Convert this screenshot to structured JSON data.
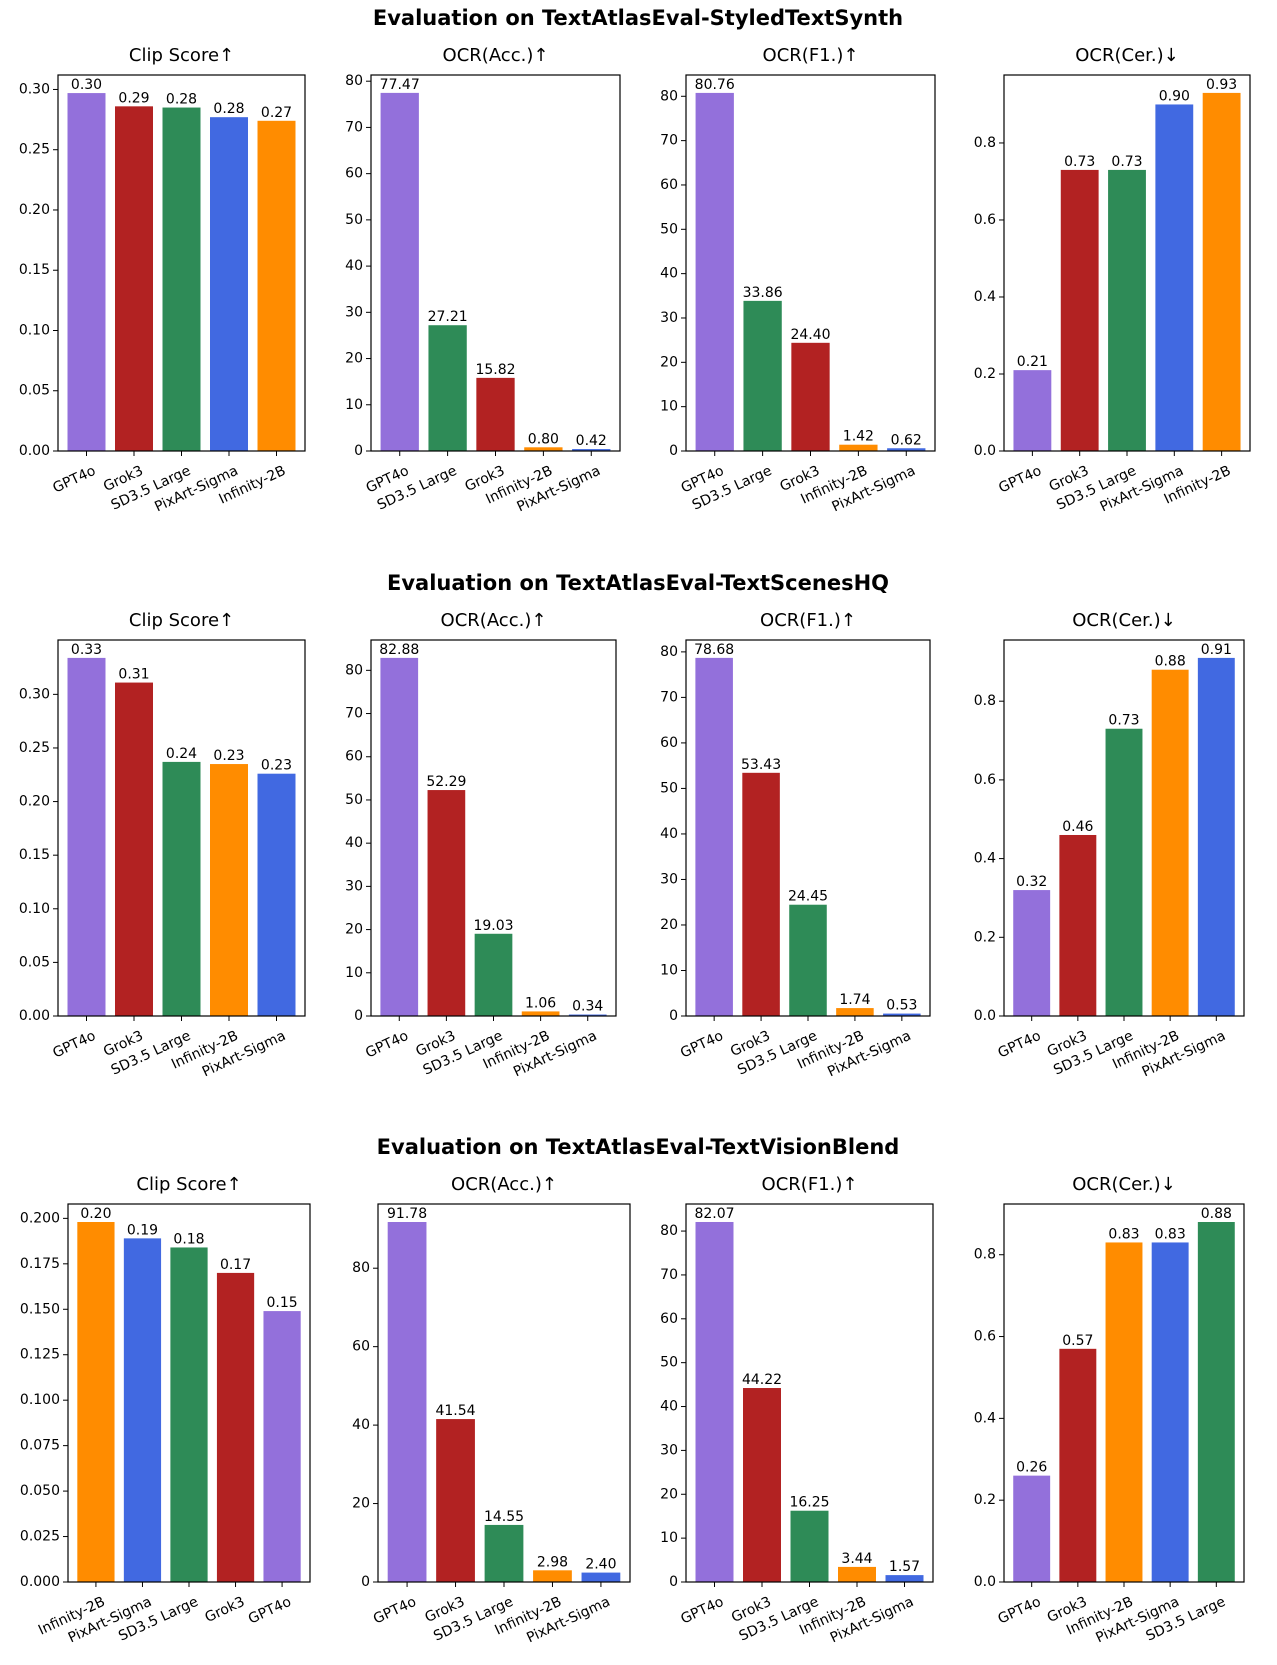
{
  "colors": {
    "GPT4o": "#9370DB",
    "Grok3": "#B22222",
    "SD3.5 Large": "#2E8B57",
    "PixArt-Sigma": "#4169E1",
    "Infinity-2B": "#FF8C00"
  },
  "chart_data": [
    {
      "title": "Evaluation on TextAtlasEval-StyledTextSynth",
      "panels": [
        {
          "type": "bar",
          "title": "Clip Score↑",
          "categories": [
            "GPT4o",
            "Grok3",
            "SD3.5 Large",
            "PixArt-Sigma",
            "Infinity-2B"
          ],
          "values": [
            0.297,
            0.286,
            0.285,
            0.277,
            0.274
          ],
          "labels": [
            "0.30",
            "0.29",
            "0.28",
            "0.28",
            "0.27"
          ],
          "ylim": [
            0,
            0.312
          ],
          "yticks": [
            0.0,
            0.05,
            0.1,
            0.15,
            0.2,
            0.25,
            0.3
          ],
          "ytick_labels": [
            "0.00",
            "0.05",
            "0.10",
            "0.15",
            "0.20",
            "0.25",
            "0.30"
          ]
        },
        {
          "type": "bar",
          "title": "OCR(Acc.)↑",
          "categories": [
            "GPT4o",
            "SD3.5 Large",
            "Grok3",
            "Infinity-2B",
            "PixArt-Sigma"
          ],
          "values": [
            77.47,
            27.21,
            15.82,
            0.8,
            0.42
          ],
          "labels": [
            "77.47",
            "27.21",
            "15.82",
            "0.80",
            "0.42"
          ],
          "ylim": [
            0,
            81.34
          ],
          "yticks": [
            0,
            10,
            20,
            30,
            40,
            50,
            60,
            70,
            80
          ],
          "ytick_labels": [
            "0",
            "10",
            "20",
            "30",
            "40",
            "50",
            "60",
            "70",
            "80"
          ]
        },
        {
          "type": "bar",
          "title": "OCR(F1.)↑",
          "categories": [
            "GPT4o",
            "SD3.5 Large",
            "Grok3",
            "Infinity-2B",
            "PixArt-Sigma"
          ],
          "values": [
            80.76,
            33.86,
            24.4,
            1.42,
            0.62
          ],
          "labels": [
            "80.76",
            "33.86",
            "24.40",
            "1.42",
            "0.62"
          ],
          "ylim": [
            0,
            84.8
          ],
          "yticks": [
            0,
            10,
            20,
            30,
            40,
            50,
            60,
            70,
            80
          ],
          "ytick_labels": [
            "0",
            "10",
            "20",
            "30",
            "40",
            "50",
            "60",
            "70",
            "80"
          ]
        },
        {
          "type": "bar",
          "title": "OCR(Cer.)↓",
          "categories": [
            "GPT4o",
            "Grok3",
            "SD3.5 Large",
            "PixArt-Sigma",
            "Infinity-2B"
          ],
          "values": [
            0.21,
            0.73,
            0.73,
            0.9,
            0.93
          ],
          "labels": [
            "0.21",
            "0.73",
            "0.73",
            "0.90",
            "0.93"
          ],
          "ylim": [
            0,
            0.9765
          ],
          "yticks": [
            0.0,
            0.2,
            0.4,
            0.6,
            0.8
          ],
          "ytick_labels": [
            "0.0",
            "0.2",
            "0.4",
            "0.6",
            "0.8"
          ]
        }
      ]
    },
    {
      "title": "Evaluation on TextAtlasEval-TextScenesHQ",
      "panels": [
        {
          "type": "bar",
          "title": "Clip Score↑",
          "categories": [
            "GPT4o",
            "Grok3",
            "SD3.5 Large",
            "Infinity-2B",
            "PixArt-Sigma"
          ],
          "values": [
            0.334,
            0.311,
            0.237,
            0.235,
            0.226
          ],
          "labels": [
            "0.33",
            "0.31",
            "0.24",
            "0.23",
            "0.23"
          ],
          "ylim": [
            0,
            0.3507
          ],
          "yticks": [
            0.0,
            0.05,
            0.1,
            0.15,
            0.2,
            0.25,
            0.3
          ],
          "ytick_labels": [
            "0.00",
            "0.05",
            "0.10",
            "0.15",
            "0.20",
            "0.25",
            "0.30"
          ]
        },
        {
          "type": "bar",
          "title": "OCR(Acc.)↑",
          "categories": [
            "GPT4o",
            "Grok3",
            "SD3.5 Large",
            "Infinity-2B",
            "PixArt-Sigma"
          ],
          "values": [
            82.88,
            52.29,
            19.03,
            1.06,
            0.34
          ],
          "labels": [
            "82.88",
            "52.29",
            "19.03",
            "1.06",
            "0.34"
          ],
          "ylim": [
            0,
            87.02
          ],
          "yticks": [
            0,
            10,
            20,
            30,
            40,
            50,
            60,
            70,
            80
          ],
          "ytick_labels": [
            "0",
            "10",
            "20",
            "30",
            "40",
            "50",
            "60",
            "70",
            "80"
          ]
        },
        {
          "type": "bar",
          "title": "OCR(F1.)↑",
          "categories": [
            "GPT4o",
            "Grok3",
            "SD3.5 Large",
            "Infinity-2B",
            "PixArt-Sigma"
          ],
          "values": [
            78.68,
            53.43,
            24.45,
            1.74,
            0.53
          ],
          "labels": [
            "78.68",
            "53.43",
            "24.45",
            "1.74",
            "0.53"
          ],
          "ylim": [
            0,
            82.61
          ],
          "yticks": [
            0,
            10,
            20,
            30,
            40,
            50,
            60,
            70,
            80
          ],
          "ytick_labels": [
            "0",
            "10",
            "20",
            "30",
            "40",
            "50",
            "60",
            "70",
            "80"
          ]
        },
        {
          "type": "bar",
          "title": "OCR(Cer.)↓",
          "categories": [
            "GPT4o",
            "Grok3",
            "SD3.5 Large",
            "Infinity-2B",
            "PixArt-Sigma"
          ],
          "values": [
            0.32,
            0.46,
            0.73,
            0.88,
            0.91
          ],
          "labels": [
            "0.32",
            "0.46",
            "0.73",
            "0.88",
            "0.91"
          ],
          "ylim": [
            0,
            0.9555
          ],
          "yticks": [
            0.0,
            0.2,
            0.4,
            0.6,
            0.8
          ],
          "ytick_labels": [
            "0.0",
            "0.2",
            "0.4",
            "0.6",
            "0.8"
          ]
        }
      ]
    },
    {
      "title": "Evaluation on TextAtlasEval-TextVisionBlend",
      "panels": [
        {
          "type": "bar",
          "title": "Clip Score↑",
          "categories": [
            "Infinity-2B",
            "PixArt-Sigma",
            "SD3.5 Large",
            "Grok3",
            "GPT4o"
          ],
          "values": [
            0.198,
            0.189,
            0.184,
            0.17,
            0.149
          ],
          "labels": [
            "0.20",
            "0.19",
            "0.18",
            "0.17",
            "0.15"
          ],
          "ylim": [
            0,
            0.2079
          ],
          "yticks": [
            0.0,
            0.025,
            0.05,
            0.075,
            0.1,
            0.125,
            0.15,
            0.175,
            0.2
          ],
          "ytick_labels": [
            "0.000",
            "0.025",
            "0.050",
            "0.075",
            "0.100",
            "0.125",
            "0.150",
            "0.175",
            "0.200"
          ]
        },
        {
          "type": "bar",
          "title": "OCR(Acc.)↑",
          "categories": [
            "GPT4o",
            "Grok3",
            "SD3.5 Large",
            "Infinity-2B",
            "PixArt-Sigma"
          ],
          "values": [
            91.78,
            41.54,
            14.55,
            2.98,
            2.4
          ],
          "labels": [
            "91.78",
            "41.54",
            "14.55",
            "2.98",
            "2.40"
          ],
          "ylim": [
            0,
            96.37
          ],
          "yticks": [
            0,
            20,
            40,
            60,
            80
          ],
          "ytick_labels": [
            "0",
            "20",
            "40",
            "60",
            "80"
          ]
        },
        {
          "type": "bar",
          "title": "OCR(F1.)↑",
          "categories": [
            "GPT4o",
            "Grok3",
            "SD3.5 Large",
            "Infinity-2B",
            "PixArt-Sigma"
          ],
          "values": [
            82.07,
            44.22,
            16.25,
            3.44,
            1.57
          ],
          "labels": [
            "82.07",
            "44.22",
            "16.25",
            "3.44",
            "1.57"
          ],
          "ylim": [
            0,
            86.17
          ],
          "yticks": [
            0,
            10,
            20,
            30,
            40,
            50,
            60,
            70,
            80
          ],
          "ytick_labels": [
            "0",
            "10",
            "20",
            "30",
            "40",
            "50",
            "60",
            "70",
            "80"
          ]
        },
        {
          "type": "bar",
          "title": "OCR(Cer.)↓",
          "categories": [
            "GPT4o",
            "Grok3",
            "Infinity-2B",
            "PixArt-Sigma",
            "SD3.5 Large"
          ],
          "values": [
            0.26,
            0.57,
            0.83,
            0.83,
            0.88
          ],
          "labels": [
            "0.26",
            "0.57",
            "0.83",
            "0.83",
            "0.88"
          ],
          "ylim": [
            0,
            0.924
          ],
          "yticks": [
            0.0,
            0.2,
            0.4,
            0.6,
            0.8
          ],
          "ytick_labels": [
            "0.0",
            "0.2",
            "0.4",
            "0.6",
            "0.8"
          ]
        }
      ]
    }
  ]
}
